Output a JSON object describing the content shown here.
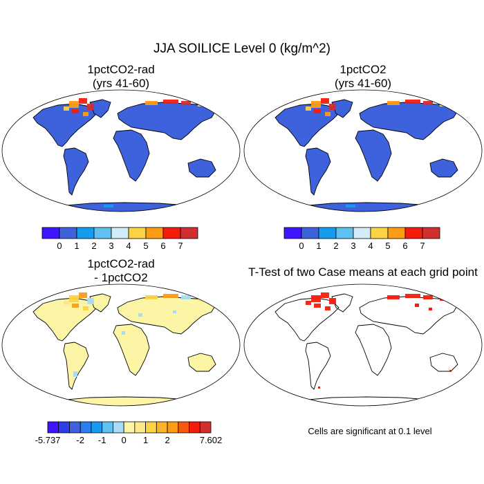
{
  "title": "JJA SOILICE Level 0 (kg/m^2)",
  "panels": [
    {
      "title_line1": "1pctCO2-rad",
      "title_line2": "(yrs 41-60)",
      "fill": "#3d62dc",
      "shade": "ice_high"
    },
    {
      "title_line1": "1pctCO2",
      "title_line2": "(yrs 41-60)",
      "fill": "#3d62dc",
      "shade": "ice_high"
    },
    {
      "title_line1": "1pctCO2-rad",
      "title_line2": "- 1pctCO2",
      "fill": "#fdf5a6",
      "shade": "diff"
    },
    {
      "title_line1": "T-Test of two Case means at each grid point",
      "title_line2": "",
      "fill": "none",
      "shade": "ttest"
    }
  ],
  "colorbar_abs": {
    "colors": [
      "#3f14ff",
      "#3d62dc",
      "#169bef",
      "#5fc1f0",
      "#d3ecf8",
      "#fcd344",
      "#fc9c14",
      "#f51c0c",
      "#d12e30"
    ],
    "labels": [
      "0",
      "1",
      "2",
      "3",
      "4",
      "5",
      "6",
      "7"
    ]
  },
  "colorbar_diff": {
    "colors": [
      "#3f14ff",
      "#2e3ee8",
      "#3d62dc",
      "#2a7ef0",
      "#169bef",
      "#5fc1f0",
      "#a9dcf4",
      "#fdf5a6",
      "#fde88a",
      "#fcd344",
      "#fcb32a",
      "#fc9c14",
      "#f65a10",
      "#f51c0c",
      "#d12e30"
    ],
    "labels": [
      "-5.737",
      "-2",
      "-1",
      "0",
      "1",
      "2",
      "7.602"
    ]
  },
  "note": "Cells are significant at 0.1 level"
}
